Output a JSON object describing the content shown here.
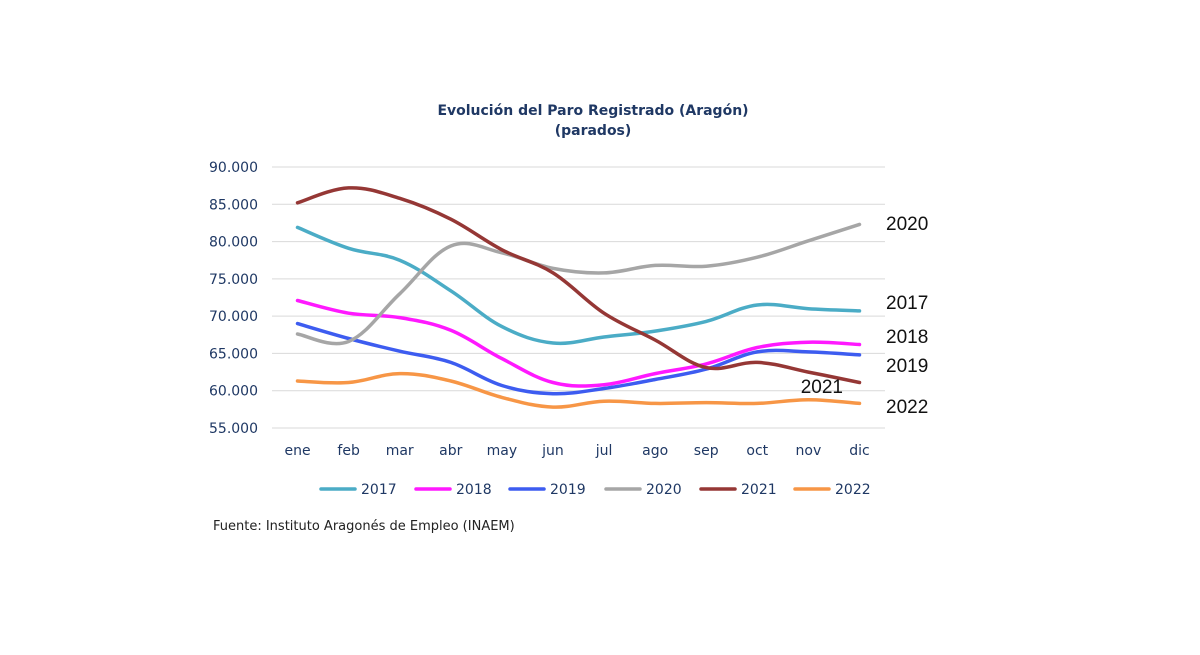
{
  "chart_data": {
    "type": "line",
    "title": "Evolución del Paro Registrado (Aragón)",
    "subtitle": "(parados)",
    "categories": [
      "ene",
      "feb",
      "mar",
      "abr",
      "may",
      "jun",
      "jul",
      "ago",
      "sep",
      "oct",
      "nov",
      "dic"
    ],
    "ylim": [
      55000,
      90000
    ],
    "yticks": [
      {
        "value": 90000,
        "label": "90.000"
      },
      {
        "value": 85000,
        "label": "85.000"
      },
      {
        "value": 80000,
        "label": "80.000"
      },
      {
        "value": 75000,
        "label": "75.000"
      },
      {
        "value": 70000,
        "label": "70.000"
      },
      {
        "value": 65000,
        "label": "65.000"
      },
      {
        "value": 60000,
        "label": "60.000"
      },
      {
        "value": 55000,
        "label": "55.000"
      }
    ],
    "grid": true,
    "legend_position": "bottom",
    "series": [
      {
        "name": "2017",
        "color": "#4bacc6",
        "end_label": "2017",
        "values": [
          81900,
          79100,
          77500,
          73400,
          68600,
          66400,
          67200,
          68000,
          69300,
          71500,
          71000,
          70700
        ]
      },
      {
        "name": "2018",
        "color": "#ff19ff",
        "end_label": "2018",
        "values": [
          72100,
          70400,
          69800,
          68100,
          64300,
          61100,
          60800,
          62300,
          63600,
          65800,
          66500,
          66200
        ]
      },
      {
        "name": "2019",
        "color": "#3d5cf0",
        "end_label": "2019",
        "values": [
          69000,
          67000,
          65300,
          63800,
          60700,
          59600,
          60300,
          61500,
          62900,
          65200,
          65200,
          64800
        ]
      },
      {
        "name": "2020",
        "color": "#a6a6a6",
        "end_label": "2020",
        "values": [
          67600,
          66600,
          73000,
          79400,
          78500,
          76400,
          75800,
          76800,
          76700,
          77900,
          80100,
          82300
        ]
      },
      {
        "name": "2021",
        "color": "#953735",
        "end_label": "2021",
        "values": [
          85200,
          87200,
          85800,
          83000,
          78900,
          75800,
          70400,
          66800,
          63100,
          63800,
          62500,
          61100
        ]
      },
      {
        "name": "2022",
        "color": "#f79646",
        "end_label": "2022",
        "values": [
          61300,
          61100,
          62300,
          61300,
          59100,
          57800,
          58600,
          58300,
          58400,
          58300,
          58800,
          58300
        ]
      }
    ]
  },
  "source": "Fuente: Instituto Aragonés de Empleo (INAEM)"
}
